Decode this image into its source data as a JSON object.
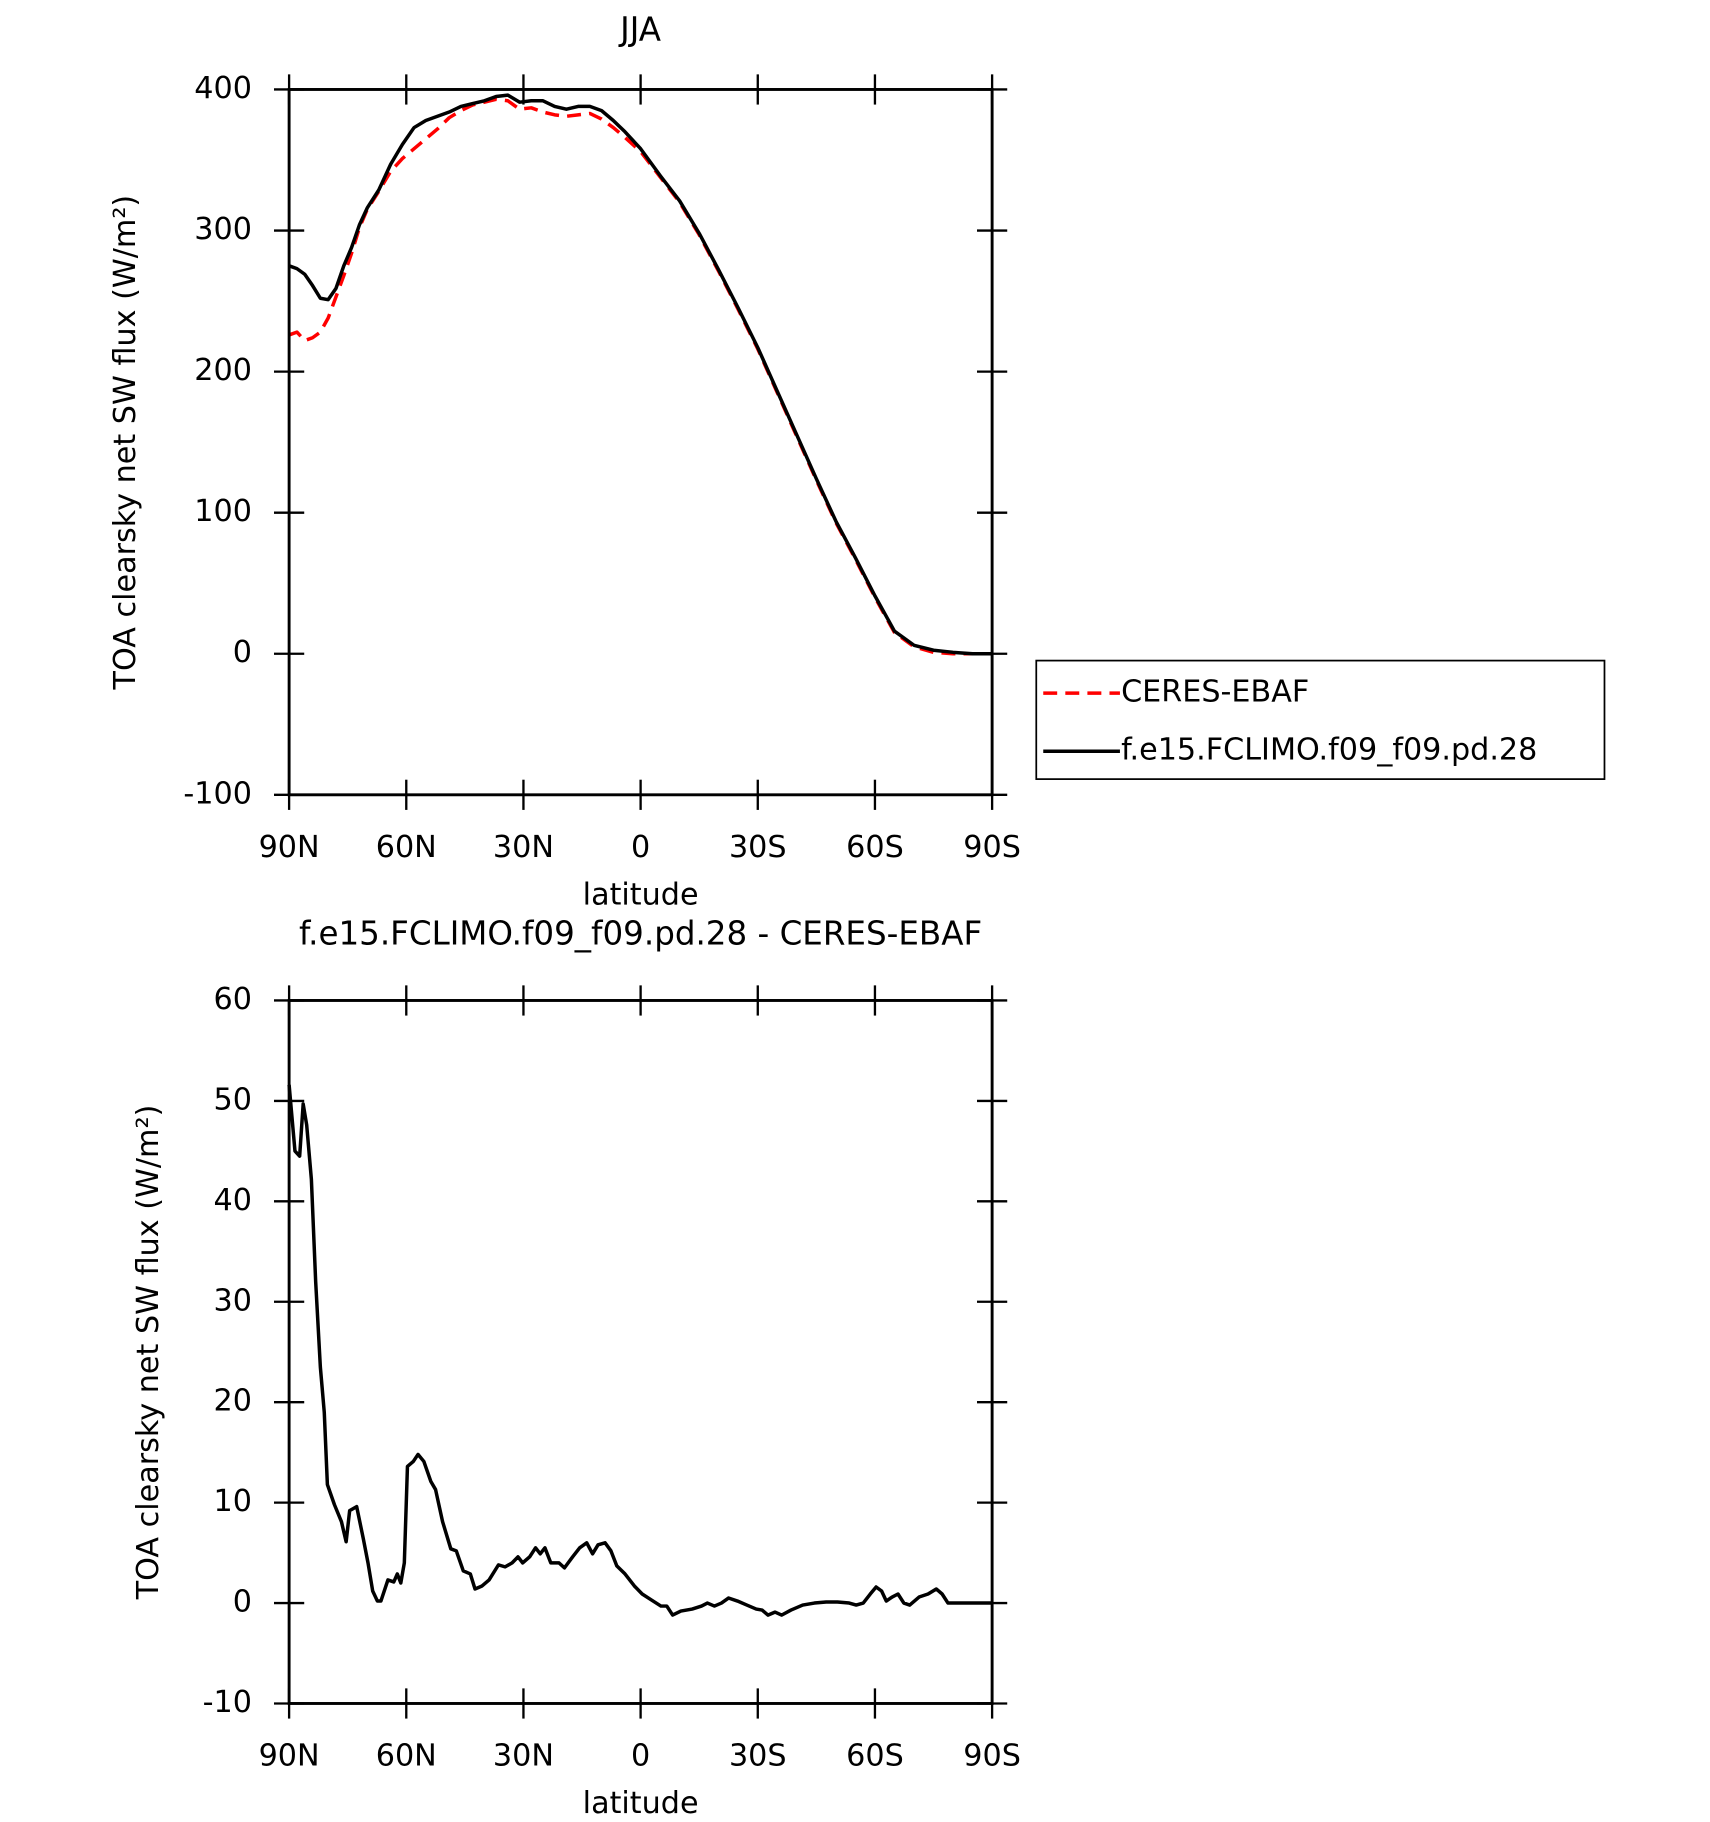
{
  "chart_data": [
    {
      "type": "line",
      "title": "JJA",
      "xlabel": "latitude",
      "ylabel": "TOA clearsky net SW flux (W/m²)",
      "x": [
        90,
        88,
        86,
        84,
        82,
        80,
        78,
        76,
        74,
        72,
        70,
        67,
        64,
        61,
        58,
        55,
        52,
        49,
        46,
        43,
        40,
        37,
        34,
        31,
        28,
        25,
        22,
        19,
        16,
        13,
        10,
        7,
        4,
        0,
        -5,
        -10,
        -15,
        -20,
        -25,
        -30,
        -35,
        -40,
        -45,
        -50,
        -55,
        -60,
        -65,
        -70,
        -75,
        -80,
        -85,
        -90
      ],
      "series": [
        {
          "name": "CERES-EBAF",
          "color": "#ff0000",
          "linestyle": "dashed",
          "values": [
            226,
            228,
            222,
            224,
            228,
            238,
            253,
            268,
            284,
            302,
            315,
            328,
            342,
            351,
            358,
            365,
            372,
            380,
            385,
            389,
            391,
            393,
            392,
            386,
            387,
            384,
            382,
            381,
            382,
            383,
            379,
            373,
            366,
            356,
            338,
            320,
            297,
            271,
            244,
            216,
            185,
            154,
            123,
            93,
            67,
            40,
            15,
            5,
            1,
            0,
            0,
            0
          ]
        },
        {
          "name": "f.e15.FCLIMO.f09_f09.pd.28",
          "color": "#000000",
          "linestyle": "solid",
          "values": [
            275,
            273,
            269,
            261,
            252,
            251,
            259,
            275,
            288,
            304,
            316,
            329,
            347,
            361,
            373,
            378,
            381,
            384,
            388,
            390,
            392,
            395,
            396,
            391,
            392,
            392,
            388,
            386,
            388,
            388,
            385,
            378,
            370,
            358,
            339,
            321,
            298,
            272,
            245,
            217,
            186,
            155,
            124,
            94,
            68,
            41,
            16,
            6,
            2.5,
            1,
            0,
            0
          ]
        }
      ],
      "xlim": [
        90,
        -90
      ],
      "xticks": [
        {
          "value": 90,
          "label": "90N"
        },
        {
          "value": 60,
          "label": "60N"
        },
        {
          "value": 30,
          "label": "30N"
        },
        0,
        {
          "value": -30,
          "label": "30S"
        },
        {
          "value": -60,
          "label": "60S"
        },
        {
          "value": -90,
          "label": "90S"
        }
      ],
      "ylim": [
        -100,
        400
      ],
      "yticks": [
        -100,
        0,
        100,
        200,
        300,
        400
      ],
      "legend": "right"
    },
    {
      "type": "line",
      "title": "f.e15.FCLIMO.f09_f09.pd.28 - CERES-EBAF",
      "xlabel": "latitude",
      "ylabel": "TOA clearsky net SW flux (W/m²)",
      "x": [
        90,
        88.5,
        87.3,
        86.4,
        85.5,
        84.3,
        83.2,
        82,
        81,
        80.2,
        78.4,
        76.6,
        75.4,
        74.5,
        72.7,
        71,
        69.8,
        68.6,
        67.4,
        66.5,
        64.7,
        63.2,
        62.3,
        61.4,
        60.5,
        59.7,
        58.2,
        57,
        55.5,
        53.7,
        52.5,
        50.7,
        48.6,
        47.2,
        45.4,
        43.6,
        42.4,
        40.6,
        38.8,
        36.4,
        34.7,
        32.9,
        31.4,
        30.2,
        28.4,
        26.9,
        25.7,
        24.5,
        23,
        20.9,
        19.5,
        17.4,
        15.6,
        13.8,
        12.3,
        10.9,
        9.1,
        7.6,
        6.1,
        4,
        1.6,
        -0.4,
        -2.8,
        -5.2,
        -6.7,
        -8.2,
        -10.3,
        -13.2,
        -15.6,
        -17.1,
        -18.9,
        -20.7,
        -22.5,
        -24.8,
        -27.2,
        -29.6,
        -31.1,
        -32.6,
        -34.4,
        -36.1,
        -38.5,
        -41.5,
        -44.5,
        -47.5,
        -50.4,
        -53.4,
        -55.2,
        -57,
        -58.8,
        -60.3,
        -61.7,
        -62.9,
        -64.4,
        -65.9,
        -67.4,
        -68.9,
        -71.3,
        -73.6,
        -75.7,
        -77.2,
        -78.7,
        -81.7,
        -90
      ],
      "values": [
        51.6,
        45,
        44.5,
        49.7,
        47.6,
        42.2,
        32,
        23.5,
        19,
        11.8,
        9.8,
        8.1,
        6.1,
        9.2,
        9.6,
        6.4,
        4,
        1.2,
        0.2,
        0.2,
        2.3,
        2.1,
        2.9,
        2,
        4,
        13.6,
        14.1,
        14.8,
        14.1,
        12.1,
        11.3,
        8.1,
        5.4,
        5.2,
        3.2,
        2.9,
        1.4,
        1.7,
        2.3,
        3.8,
        3.6,
        4,
        4.6,
        4,
        4.6,
        5.5,
        4.9,
        5.5,
        4,
        4,
        3.5,
        4.6,
        5.5,
        6,
        4.9,
        5.8,
        6,
        5.2,
        3.7,
        2.9,
        1.7,
        0.9,
        0.3,
        -0.3,
        -0.3,
        -1.2,
        -0.8,
        -0.6,
        -0.3,
        0,
        -0.3,
        0,
        0.5,
        0.2,
        -0.2,
        -0.6,
        -0.7,
        -1.2,
        -0.9,
        -1.2,
        -0.7,
        -0.2,
        0,
        0.1,
        0.1,
        0,
        -0.2,
        0,
        0.9,
        1.6,
        1.2,
        0.2,
        0.6,
        0.9,
        0,
        -0.2,
        0.6,
        0.9,
        1.4,
        0.9,
        0,
        0,
        0
      ],
      "color": "#000000",
      "xlim": [
        90,
        -90
      ],
      "xticks": [
        {
          "value": 90,
          "label": "90N"
        },
        {
          "value": 60,
          "label": "60N"
        },
        {
          "value": 30,
          "label": "30N"
        },
        0,
        {
          "value": -30,
          "label": "30S"
        },
        {
          "value": -60,
          "label": "60S"
        },
        {
          "value": -90,
          "label": "90S"
        }
      ],
      "ylim": [
        -10,
        60
      ],
      "yticks": [
        -10,
        0,
        10,
        20,
        30,
        40,
        50,
        60
      ]
    }
  ]
}
